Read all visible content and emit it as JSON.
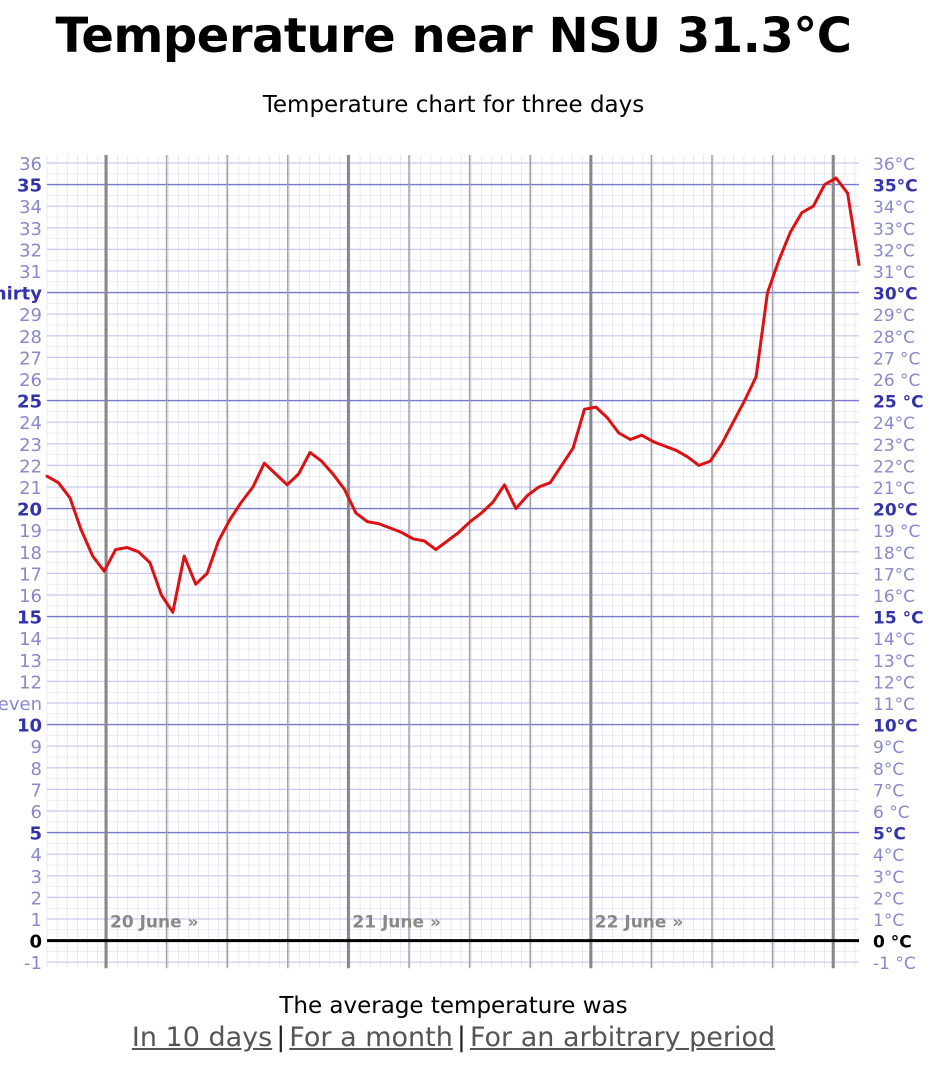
{
  "header": {
    "title": "Temperature near NSU 31.3°C",
    "subtitle": "Temperature chart for three days"
  },
  "footer": {
    "average_text": "The average temperature was",
    "links": [
      "In 10 days",
      "For a month",
      "For an arbitrary period"
    ],
    "separator": "|"
  },
  "colors": {
    "line": "#dd1111",
    "major_grid": "#7777cc",
    "minor_grid": "#c8c8ec",
    "label_light": "#8888cc",
    "label_strong": "#3333aa",
    "day_line": "#888888",
    "zero_line": "#000000"
  },
  "chart_data": {
    "type": "line",
    "title": "Temperature chart for three days",
    "ylim": [
      -1,
      36
    ],
    "left_tick_labels": [
      "-1",
      "0",
      "1",
      "2",
      "3",
      "4",
      "5",
      "6",
      "7",
      "8",
      "9",
      "10",
      "eleven",
      "12",
      "13",
      "14",
      "15",
      "16",
      "17",
      "18",
      "19",
      "20",
      "21",
      "22",
      "23",
      "24",
      "25",
      "26",
      "27",
      "28",
      "29",
      "thirty",
      "31",
      "32",
      "33",
      "34",
      "35",
      "36"
    ],
    "right_tick_labels": [
      "-1 °C",
      "0 °C",
      "1°C",
      "2°C",
      "3°C",
      "4°C",
      "5°C",
      "6 °C",
      "7°C",
      "8°C",
      "9°C",
      "10°C",
      "11°C",
      "12°C",
      "13°C",
      "14°C",
      "15 °C",
      "16°C",
      "17°C",
      "18°C",
      "19 °C",
      "20°C",
      "21°C",
      "22°C",
      "23°C",
      "24°C",
      "25 °C",
      "26 °C",
      "27 °C",
      "28°C",
      "29°C",
      "30°C",
      "31°C",
      "32°C",
      "33°C",
      "34°C",
      "35°C",
      "36°C"
    ],
    "day_labels": [
      "20 June »",
      "21 June »",
      "22 June »"
    ],
    "grid": true,
    "series": [
      {
        "x_hours": [
          0,
          1,
          2,
          3,
          4,
          5,
          6,
          7,
          8,
          9,
          10,
          11,
          12,
          13,
          14,
          15,
          16,
          17,
          18,
          19,
          20,
          21,
          22,
          23,
          24,
          25,
          26,
          27,
          28,
          29,
          30,
          31,
          32,
          33,
          34,
          35,
          36,
          37,
          38,
          39,
          40,
          41,
          42,
          43,
          44,
          45,
          46,
          47,
          48,
          49,
          50,
          51,
          52,
          53,
          54,
          55,
          56,
          57,
          58,
          59,
          60,
          61,
          62,
          63,
          64,
          65,
          66,
          67,
          68,
          69,
          70,
          71
        ],
        "values": [
          21.5,
          21.2,
          20.5,
          19.0,
          17.8,
          17.1,
          18.1,
          18.2,
          18.0,
          17.5,
          16.0,
          15.2,
          17.8,
          16.5,
          17.0,
          18.5,
          19.5,
          20.3,
          21.0,
          22.1,
          21.6,
          21.1,
          21.6,
          22.6,
          22.2,
          21.6,
          20.9,
          19.8,
          19.4,
          19.3,
          19.1,
          18.9,
          18.6,
          18.5,
          18.1,
          18.5,
          18.9,
          19.4,
          19.8,
          20.3,
          21.1,
          20.0,
          20.6,
          21.0,
          21.2,
          22.0,
          22.8,
          24.6,
          24.7,
          24.2,
          23.5,
          23.2,
          23.4,
          23.1,
          22.9,
          22.7,
          22.4,
          22.0,
          22.2,
          23.0,
          24.0,
          25.0,
          26.1,
          30.0,
          31.5,
          32.8,
          33.7,
          34.0,
          35.0,
          35.3,
          34.6,
          31.3
        ]
      }
    ]
  }
}
